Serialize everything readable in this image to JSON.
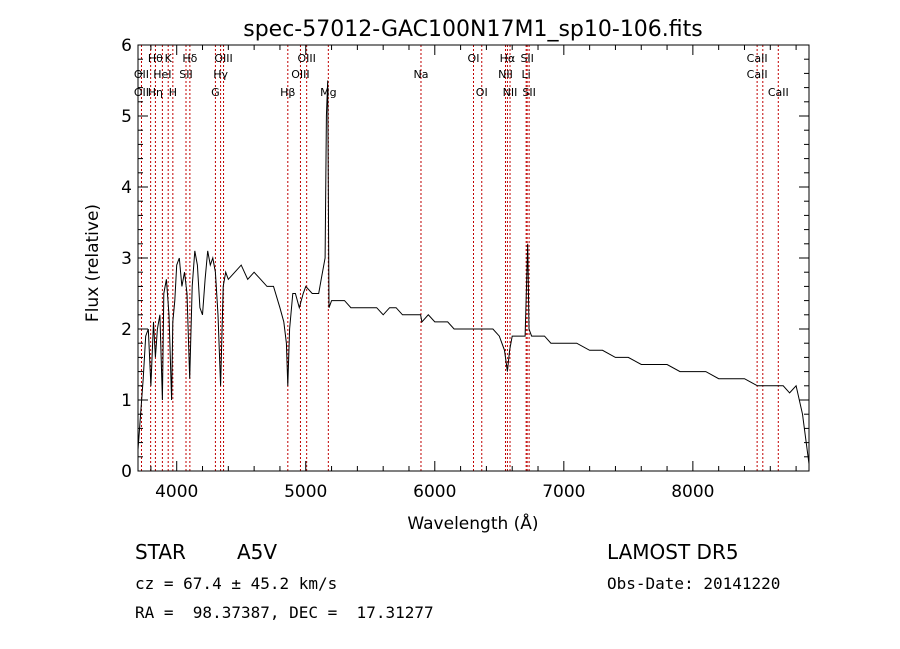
{
  "chart_data": {
    "type": "line",
    "title": "spec-57012-GAC100N17M1_sp10-106.fits",
    "xlabel": "Wavelength (Å)",
    "ylabel": "Flux (relative)",
    "xlim": [
      3700,
      8900
    ],
    "ylim": [
      0,
      6
    ],
    "xticks": [
      4000,
      5000,
      6000,
      7000,
      8000
    ],
    "yticks": [
      0,
      1,
      2,
      3,
      4,
      5,
      6
    ],
    "grid": false,
    "series": [
      {
        "color": "#000000",
        "x": [
          3700,
          3720,
          3740,
          3760,
          3780,
          3800,
          3820,
          3835,
          3850,
          3870,
          3889,
          3900,
          3920,
          3940,
          3960,
          3970,
          3985,
          4000,
          4020,
          4040,
          4060,
          4080,
          4101,
          4120,
          4140,
          4160,
          4180,
          4200,
          4220,
          4240,
          4260,
          4280,
          4300,
          4320,
          4340,
          4360,
          4380,
          4400,
          4450,
          4500,
          4550,
          4600,
          4650,
          4700,
          4750,
          4800,
          4830,
          4850,
          4861,
          4875,
          4900,
          4920,
          4950,
          4980,
          5000,
          5050,
          5100,
          5120,
          5150,
          5160,
          5170,
          5180,
          5200,
          5250,
          5300,
          5350,
          5400,
          5450,
          5500,
          5550,
          5600,
          5650,
          5700,
          5750,
          5800,
          5850,
          5890,
          5900,
          5950,
          6000,
          6050,
          6100,
          6150,
          6200,
          6250,
          6300,
          6350,
          6400,
          6450,
          6500,
          6540,
          6563,
          6580,
          6600,
          6650,
          6700,
          6720,
          6730,
          6750,
          6800,
          6850,
          6900,
          7000,
          7100,
          7200,
          7300,
          7400,
          7500,
          7600,
          7700,
          7800,
          7900,
          8000,
          8100,
          8200,
          8300,
          8400,
          8500,
          8550,
          8600,
          8650,
          8700,
          8750,
          8800,
          8850,
          8900
        ],
        "y": [
          0.3,
          0.8,
          1.3,
          1.9,
          2.0,
          1.2,
          2.1,
          1.6,
          2.0,
          2.2,
          1.0,
          2.5,
          2.7,
          2.2,
          1.0,
          2.1,
          2.4,
          2.9,
          3.0,
          2.6,
          2.8,
          2.5,
          1.3,
          2.6,
          3.1,
          2.9,
          2.3,
          2.2,
          2.7,
          3.1,
          2.9,
          3.0,
          2.8,
          2.2,
          1.2,
          2.6,
          2.8,
          2.7,
          2.8,
          2.9,
          2.7,
          2.8,
          2.7,
          2.6,
          2.6,
          2.3,
          2.1,
          1.8,
          1.2,
          2.0,
          2.5,
          2.5,
          2.3,
          2.5,
          2.6,
          2.5,
          2.5,
          2.7,
          3.0,
          5.0,
          5.5,
          2.3,
          2.4,
          2.4,
          2.4,
          2.3,
          2.3,
          2.3,
          2.3,
          2.3,
          2.2,
          2.3,
          2.3,
          2.2,
          2.2,
          2.2,
          2.2,
          2.1,
          2.2,
          2.1,
          2.1,
          2.1,
          2.0,
          2.0,
          2.0,
          2.0,
          2.0,
          2.0,
          2.0,
          1.9,
          1.7,
          1.4,
          1.7,
          1.9,
          1.9,
          1.9,
          3.2,
          2.0,
          1.9,
          1.9,
          1.9,
          1.8,
          1.8,
          1.8,
          1.7,
          1.7,
          1.6,
          1.6,
          1.5,
          1.5,
          1.5,
          1.4,
          1.4,
          1.4,
          1.3,
          1.3,
          1.3,
          1.2,
          1.2,
          1.2,
          1.2,
          1.2,
          1.1,
          1.2,
          0.8,
          0.1
        ]
      }
    ],
    "lines": [
      {
        "w": 3727,
        "top": "",
        "mid": "OII",
        "bot": "OII"
      },
      {
        "w": 3798,
        "top": "",
        "mid": "",
        "bot": ""
      },
      {
        "w": 3835,
        "top": "Hθ",
        "mid": "",
        "bot": "Hη"
      },
      {
        "w": 3889,
        "top": "",
        "mid": "HeI",
        "bot": ""
      },
      {
        "w": 3934,
        "top": "K",
        "mid": "",
        "bot": ""
      },
      {
        "w": 3970,
        "top": "",
        "mid": "",
        "bot": "H"
      },
      {
        "w": 4072,
        "top": "",
        "mid": "SII",
        "bot": ""
      },
      {
        "w": 4102,
        "top": "Hδ",
        "mid": "",
        "bot": ""
      },
      {
        "w": 4300,
        "top": "",
        "mid": "",
        "bot": "G"
      },
      {
        "w": 4340,
        "top": "",
        "mid": "Hγ",
        "bot": ""
      },
      {
        "w": 4363,
        "top": "OIII",
        "mid": "",
        "bot": ""
      },
      {
        "w": 4861,
        "top": "",
        "mid": "",
        "bot": "Hβ"
      },
      {
        "w": 4959,
        "top": "",
        "mid": "OIII",
        "bot": ""
      },
      {
        "w": 5007,
        "top": "OIII",
        "mid": "",
        "bot": ""
      },
      {
        "w": 5175,
        "top": "",
        "mid": "",
        "bot": "Mg"
      },
      {
        "w": 5893,
        "top": "",
        "mid": "Na",
        "bot": ""
      },
      {
        "w": 6300,
        "top": "OI",
        "mid": "",
        "bot": ""
      },
      {
        "w": 6364,
        "top": "",
        "mid": "",
        "bot": "OI"
      },
      {
        "w": 6548,
        "top": "",
        "mid": "NII",
        "bot": ""
      },
      {
        "w": 6563,
        "top": "Hα",
        "mid": "",
        "bot": ""
      },
      {
        "w": 6583,
        "top": "",
        "mid": "",
        "bot": "NII"
      },
      {
        "w": 6708,
        "top": "",
        "mid": "Li",
        "bot": ""
      },
      {
        "w": 6716,
        "top": "SII",
        "mid": "",
        "bot": ""
      },
      {
        "w": 6731,
        "top": "",
        "mid": "",
        "bot": "SII"
      },
      {
        "w": 8498,
        "top": "CaII",
        "mid": "CaII",
        "bot": ""
      },
      {
        "w": 8542,
        "top": "",
        "mid": "",
        "bot": ""
      },
      {
        "w": 8662,
        "top": "",
        "mid": "",
        "bot": "CaII"
      }
    ]
  },
  "info": {
    "class_label": "STAR",
    "subclass": "A5V",
    "survey": "LAMOST DR5",
    "cz": "cz = 67.4 ± 45.2 km/s",
    "obs_date": "Obs-Date: 20141220",
    "coords": "RA =  98.37387, DEC =  17.31277"
  }
}
